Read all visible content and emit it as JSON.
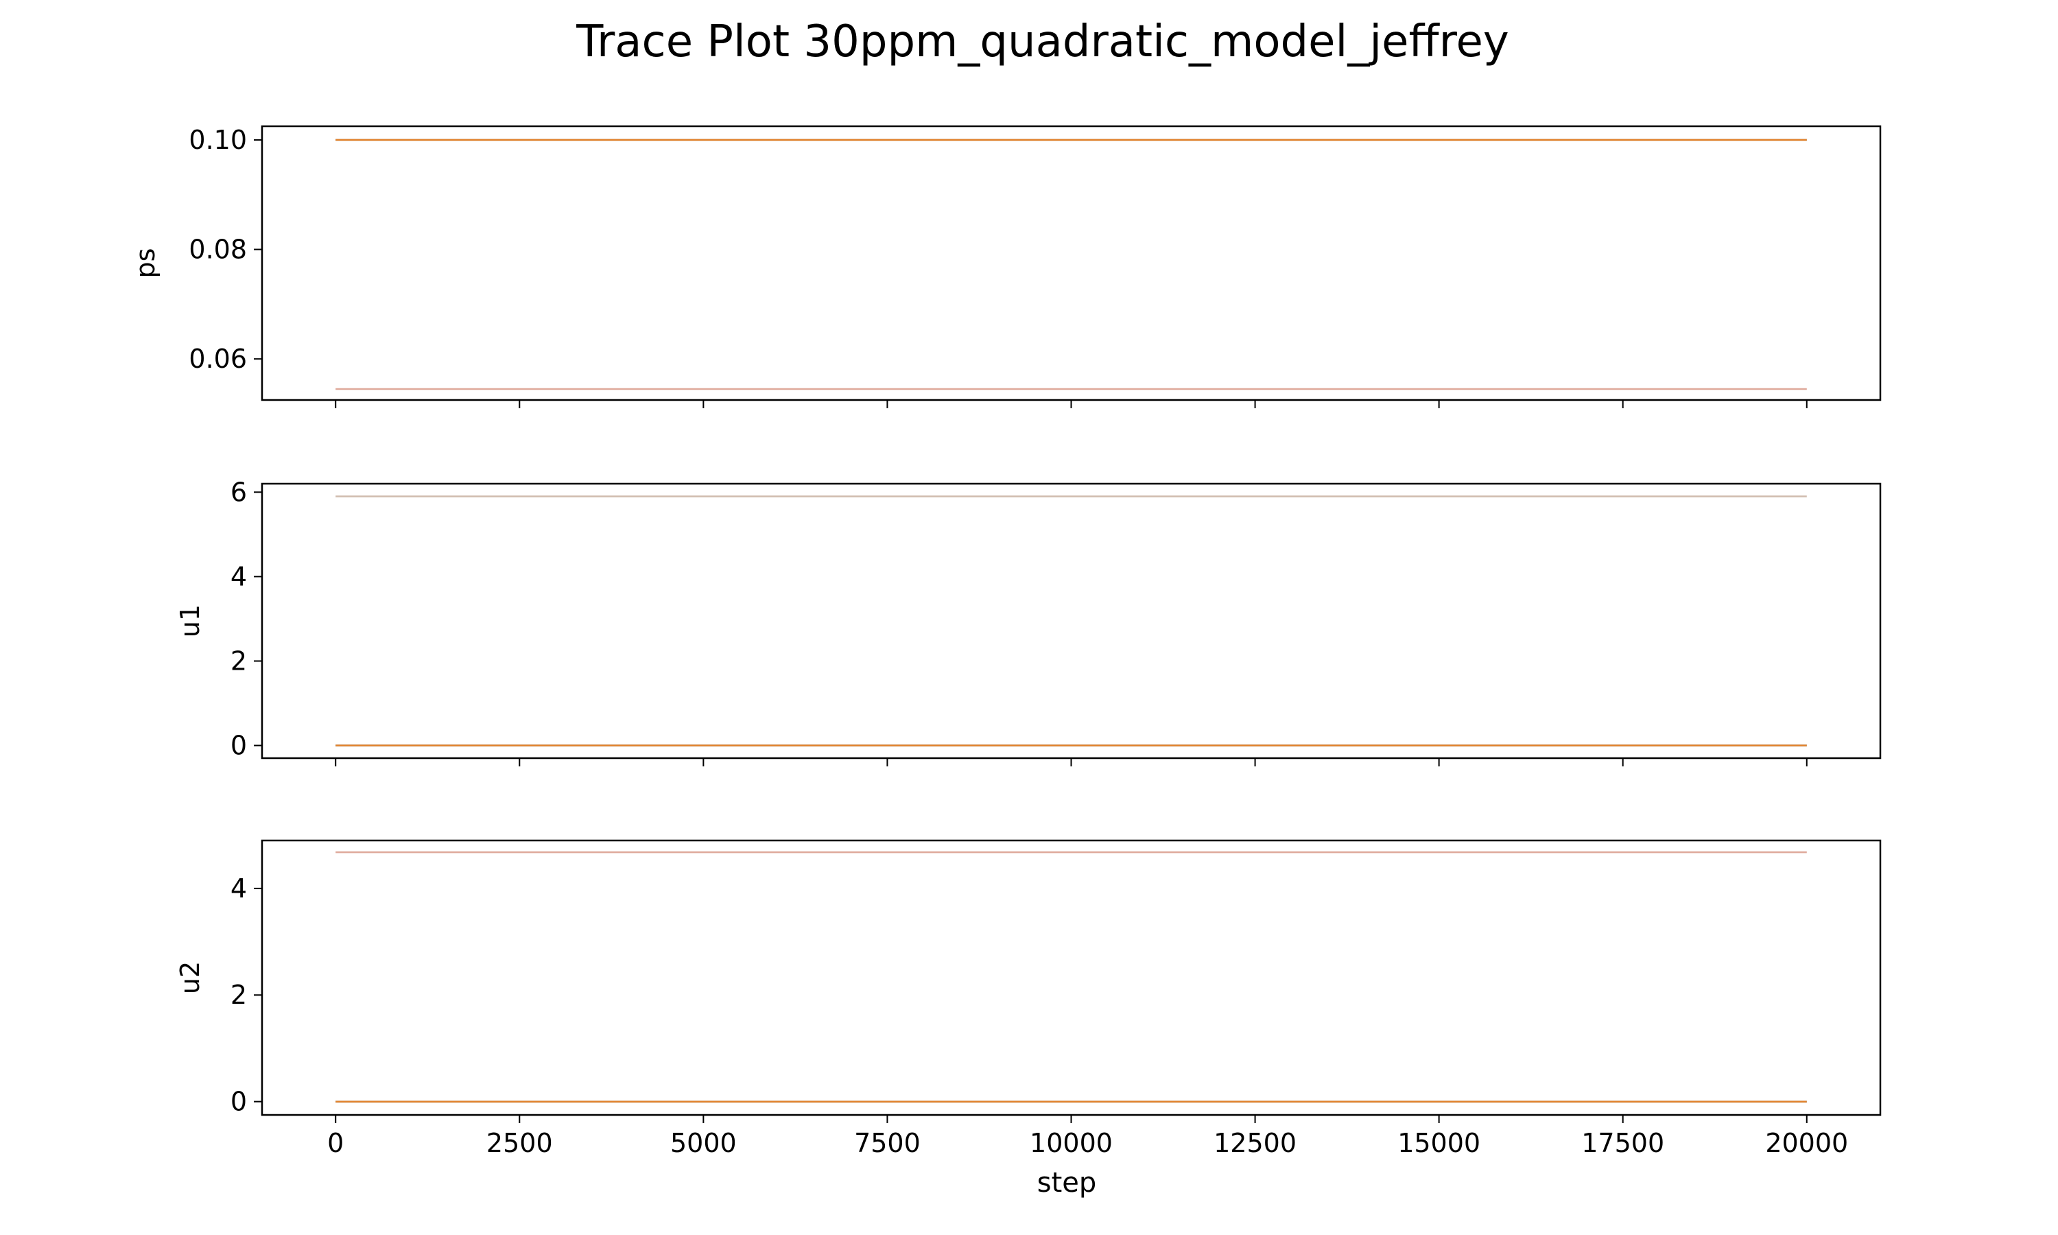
{
  "title": "Trace Plot 30ppm_quadratic_model_jeffrey",
  "chart_data": {
    "type": "line",
    "title": "Trace Plot 30ppm_quadratic_model_jeffrey",
    "xlabel": "step",
    "xlim": [
      -1000,
      21000
    ],
    "x_ticks": [
      0,
      2500,
      5000,
      7500,
      10000,
      12500,
      15000,
      17500,
      20000
    ],
    "x_tick_labels": [
      "0",
      "2500",
      "5000",
      "7500",
      "10000",
      "12500",
      "15000",
      "17500",
      "20000"
    ],
    "grid": false,
    "legend": "none",
    "subplots": [
      {
        "ylabel": "ps",
        "ylim": [
          0.0525,
          0.1025
        ],
        "y_ticks": [
          0.06,
          0.08,
          0.1
        ],
        "y_tick_labels": [
          "0.06",
          "0.08",
          "0.10"
        ],
        "series": [
          {
            "color": "#1f77b4",
            "x": [
              0,
              20000
            ],
            "y": [
              0.1,
              0.1
            ]
          },
          {
            "color": "#ff7f0e",
            "x": [
              0,
              20000
            ],
            "y": [
              0.1,
              0.1
            ]
          },
          {
            "color": "#d99a8a",
            "x": [
              0,
              20000
            ],
            "y": [
              0.0545,
              0.0545
            ]
          }
        ]
      },
      {
        "ylabel": "u1",
        "ylim": [
          -0.3,
          6.2
        ],
        "y_ticks": [
          0,
          2,
          4,
          6
        ],
        "y_tick_labels": [
          "0",
          "2",
          "4",
          "6"
        ],
        "series": [
          {
            "color": "#c8b0a0",
            "x": [
              0,
              20000
            ],
            "y": [
              5.9,
              5.9
            ]
          },
          {
            "color": "#1f77b4",
            "x": [
              0,
              20000
            ],
            "y": [
              0.0,
              0.0
            ]
          },
          {
            "color": "#ff7f0e",
            "x": [
              0,
              20000
            ],
            "y": [
              0.0,
              0.0
            ]
          }
        ]
      },
      {
        "ylabel": "u2",
        "ylim": [
          -0.25,
          4.9
        ],
        "y_ticks": [
          0,
          2,
          4
        ],
        "y_tick_labels": [
          "0",
          "2",
          "4"
        ],
        "series": [
          {
            "color": "#d99a8a",
            "x": [
              0,
              20000
            ],
            "y": [
              4.68,
              4.68
            ]
          },
          {
            "color": "#1f77b4",
            "x": [
              0,
              20000
            ],
            "y": [
              0.0,
              0.0
            ]
          },
          {
            "color": "#ff7f0e",
            "x": [
              0,
              20000
            ],
            "y": [
              0.0,
              0.0
            ]
          }
        ]
      }
    ]
  }
}
